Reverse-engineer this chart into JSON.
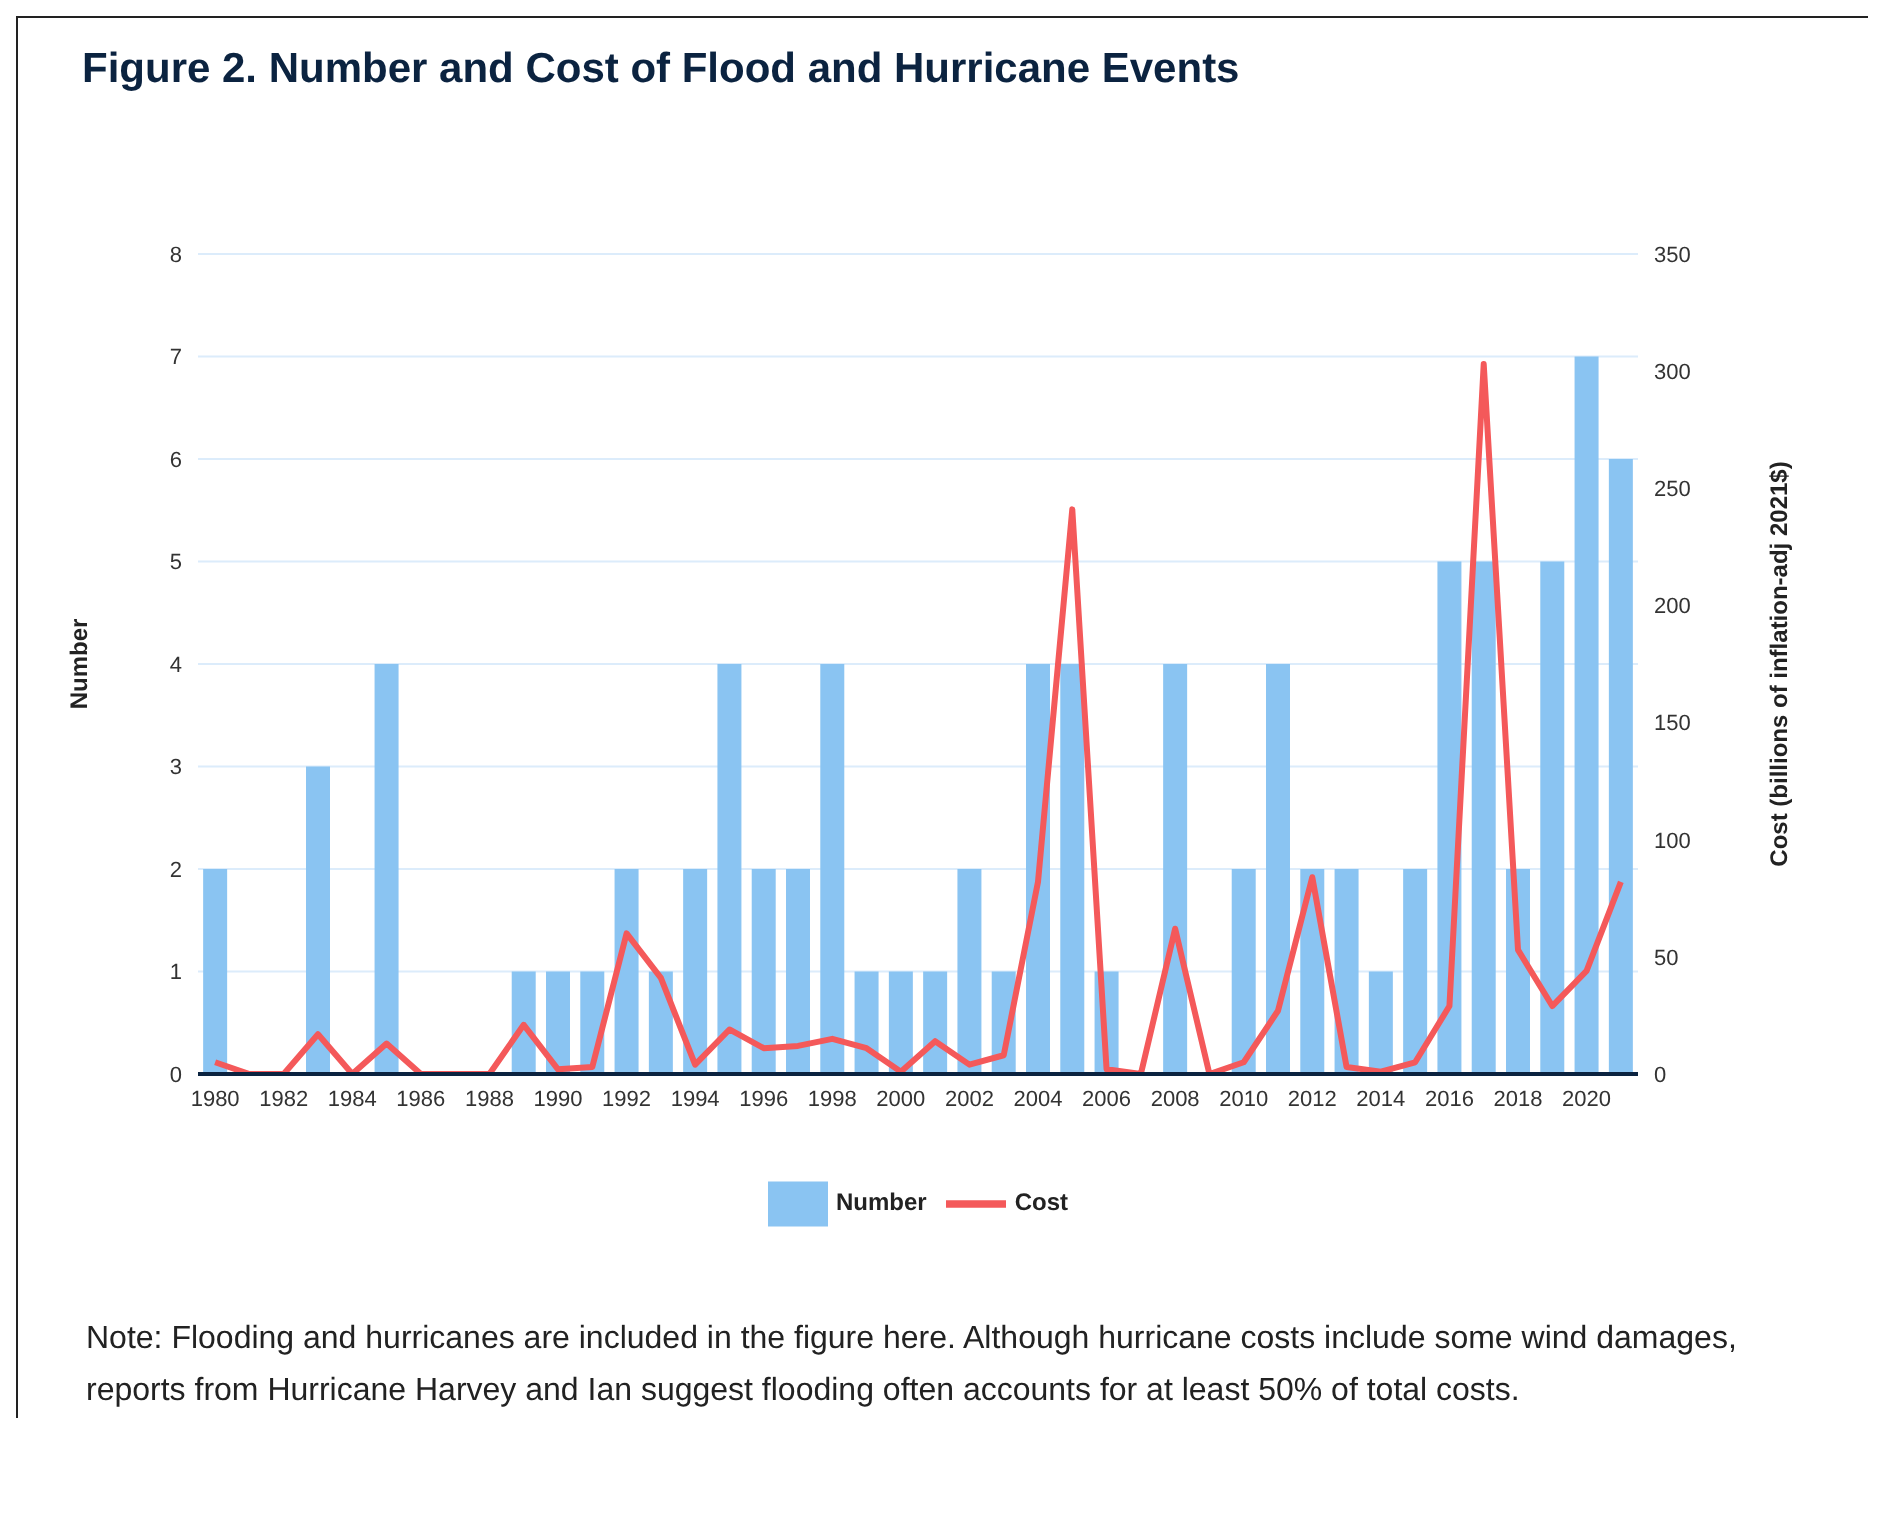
{
  "chart_data": {
    "type": "bar",
    "title": "Figure 2. Number and Cost of Flood and Hurricane Events",
    "categories": [
      "1980",
      null,
      "1982",
      null,
      "1984",
      null,
      "1986",
      null,
      "1988",
      null,
      "1990",
      null,
      "1992",
      null,
      "1994",
      null,
      "1996",
      null,
      "1998",
      null,
      "2000",
      null,
      "2002",
      null,
      "2004",
      null,
      "2006",
      null,
      "2008",
      null,
      "2010",
      null,
      "2012",
      null,
      "2014",
      null,
      "2016",
      null,
      "2018",
      null,
      "2020",
      null
    ],
    "series": [
      {
        "name": "Number",
        "color": "#8ac4f2",
        "values": [
          2,
          0,
          0,
          3,
          0,
          4,
          0,
          0,
          0,
          1,
          1,
          1,
          2,
          1,
          2,
          4,
          2,
          2,
          4,
          1,
          1,
          1,
          2,
          1,
          4,
          4,
          1,
          0,
          4,
          0,
          2,
          4,
          2,
          2,
          1,
          2,
          5,
          5,
          2,
          5,
          7,
          6
        ]
      },
      {
        "name": "Cost",
        "type": "line",
        "axis": "y2",
        "color": "#f4595a",
        "values": [
          5,
          0,
          0,
          17,
          0,
          13,
          0,
          0,
          0,
          21,
          2,
          3,
          60,
          41,
          4,
          19,
          11,
          12,
          15,
          11,
          1,
          14,
          4,
          8,
          82,
          241,
          2,
          0,
          62,
          0,
          5,
          27,
          84,
          3,
          1,
          5,
          29,
          303,
          53,
          29,
          44,
          82
        ]
      }
    ],
    "ylabel": "Number",
    "y2label": "Cost (billions of inflation-adj 2021$)",
    "ylim": [
      0,
      8
    ],
    "yticks": [
      0,
      1,
      2,
      3,
      4,
      5,
      6,
      7,
      8
    ],
    "y2lim": [
      0,
      350
    ],
    "y2ticks": [
      0,
      50,
      100,
      150,
      200,
      250,
      300,
      350
    ],
    "grid": "y",
    "legend": "bottom",
    "marker": "none",
    "line_style": "solid",
    "annotations": [
      "Note: Flooding and hurricanes are included in the figure here. Although hurricane costs include some wind damages, reports from Hurricane Harvey and Ian suggest flooding often accounts for at least 50% of total costs."
    ]
  }
}
